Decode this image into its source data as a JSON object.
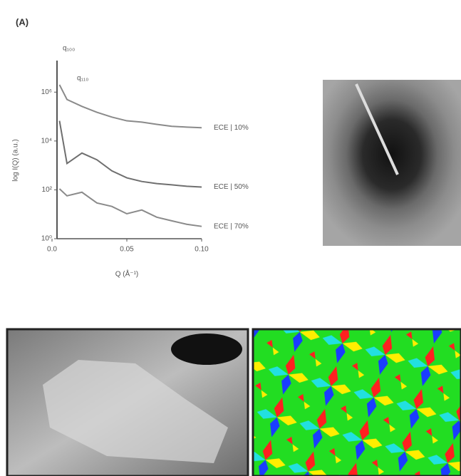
{
  "panel_label": "(A)",
  "chart_data": {
    "type": "line",
    "x_label": "Q (Å⁻¹)",
    "y_label": "log I(Q) (a.u.)",
    "annotations": [
      "q₁₀₀",
      "q₁₁₀"
    ],
    "x": [
      0.005,
      0.01,
      0.02,
      0.03,
      0.04,
      0.05,
      0.06,
      0.07,
      0.08,
      0.09,
      0.1
    ],
    "series": [
      {
        "name": "ECE | 10%",
        "color": "#8a8a8a",
        "values": [
          2000000,
          500000,
          260000,
          150000,
          95000,
          67000,
          59000,
          48000,
          40000,
          37000,
          35000
        ]
      },
      {
        "name": "ECE | 50%",
        "color": "#6f6f6f",
        "values": [
          67000,
          1200,
          3200,
          1700,
          600,
          310,
          220,
          180,
          160,
          140,
          130
        ]
      },
      {
        "name": "ECE | 70%",
        "color": "#8a8a8a",
        "values": [
          110,
          57,
          80,
          29,
          21,
          10.5,
          15,
          7.6,
          5.4,
          3.9,
          3.2
        ]
      }
    ],
    "xlim": [
      0,
      0.1
    ],
    "xticks": [
      {
        "value": 0,
        "label": "0.0"
      },
      0.05,
      {
        "value": 0.1,
        "label": "0.10"
      }
    ],
    "ylim": [
      1,
      10000000
    ],
    "log_y": true,
    "yticks": [
      {
        "value": 1,
        "label": "10⁰"
      },
      {
        "value": 100,
        "label": "10²"
      },
      {
        "value": 10000,
        "label": "10⁴"
      },
      {
        "value": 1000000,
        "label": "10⁶"
      }
    ]
  }
}
